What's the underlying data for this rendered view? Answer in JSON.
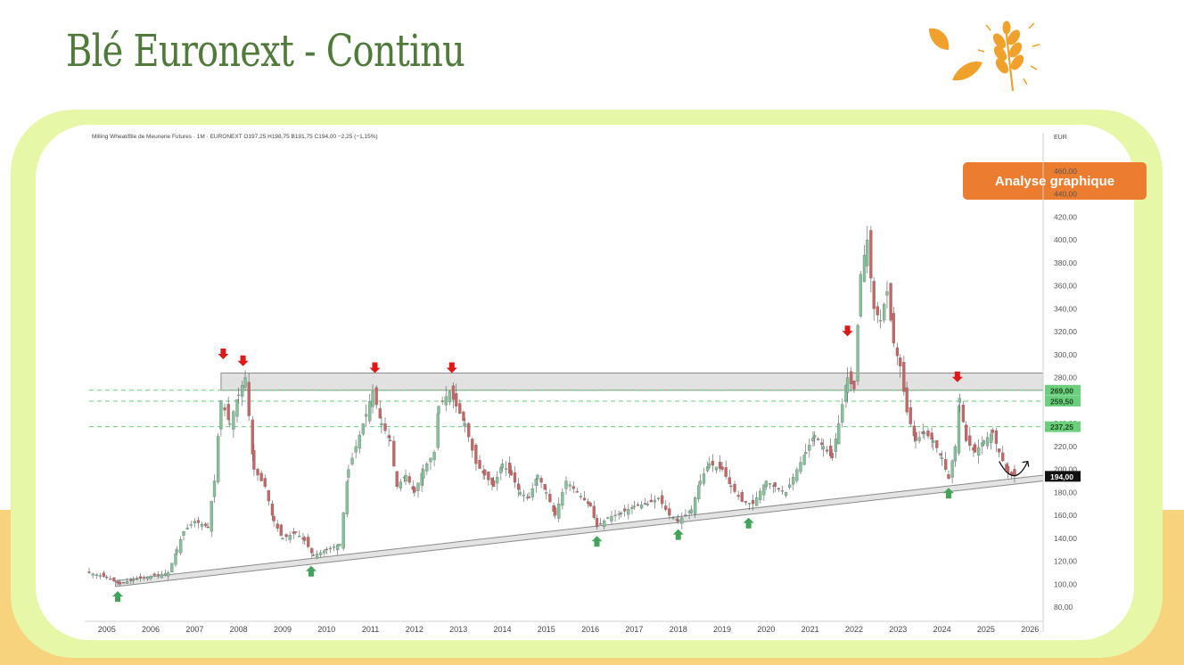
{
  "slide": {
    "title": "Blé Euronext - Continu",
    "badge": "Analyse graphique"
  },
  "colors": {
    "title": "#4f7a3a",
    "frame": "#e6f8a8",
    "band": "#f7d37e",
    "badge": "#ec7d30",
    "up_candle": "#84c29a",
    "down_candle": "#c96462",
    "sell_arrow": "#e01818",
    "buy_arrow": "#43a35a",
    "level_line": "#6ccf7e",
    "price_tag": "#111111"
  },
  "icons": [
    "leaf-icon",
    "wheat-icon"
  ],
  "chart_data": {
    "type": "candlestick",
    "header": "Milling Wheat/Ble de Meunerie Futures · 1M · EURONEXT O197,25 H198,75 B191,75 C194,00 −2,25 (−1,15%)",
    "currency": "EUR",
    "ylim": [
      70,
      470
    ],
    "y_ticks": [
      "460,00",
      "440,00",
      "420,00",
      "400,00",
      "380,00",
      "360,00",
      "340,00",
      "320,00",
      "300,00",
      "280,00",
      "260,00",
      "240,00",
      "220,00",
      "200,00",
      "180,00",
      "160,00",
      "140,00",
      "120,00",
      "100,00",
      "80,00"
    ],
    "x_ticks": [
      "2005",
      "2006",
      "2007",
      "2008",
      "2009",
      "2010",
      "2011",
      "2012",
      "2013",
      "2014",
      "2015",
      "2016",
      "2017",
      "2018",
      "2019",
      "2020",
      "2021",
      "2022",
      "2023",
      "2024",
      "2025",
      "2026"
    ],
    "xlim": [
      2004.6,
      2026.3
    ],
    "price_levels": [
      {
        "label": "269,00",
        "value": 269,
        "highlight": true
      },
      {
        "label": "259,50",
        "value": 259.5,
        "highlight": true
      },
      {
        "label": "237,25",
        "value": 237.25,
        "highlight": true
      },
      {
        "label": "194,00",
        "value": 194,
        "highlight": false
      }
    ],
    "resistance_zone": {
      "x": [
        2007.6,
        2026.3
      ],
      "y": [
        269,
        284
      ]
    },
    "support_channel": {
      "x": [
        2005.2,
        2026.3
      ],
      "y_bottom": [
        98,
        190
      ],
      "y_top": [
        103,
        195
      ]
    },
    "sell_arrows": [
      {
        "x": 2007.65,
        "y": 296
      },
      {
        "x": 2008.1,
        "y": 290
      },
      {
        "x": 2011.1,
        "y": 284
      },
      {
        "x": 2012.85,
        "y": 284
      },
      {
        "x": 2021.85,
        "y": 316
      },
      {
        "x": 2024.35,
        "y": 276
      }
    ],
    "buy_arrows": [
      {
        "x": 2005.25,
        "y": 94
      },
      {
        "x": 2009.65,
        "y": 116
      },
      {
        "x": 2016.15,
        "y": 142
      },
      {
        "x": 2018.0,
        "y": 148
      },
      {
        "x": 2019.6,
        "y": 158
      },
      {
        "x": 2024.15,
        "y": 184
      }
    ],
    "projection_arrow": {
      "from": [
        2025.3,
        207
      ],
      "via": [
        2025.65,
        193
      ],
      "to": [
        2025.95,
        207
      ]
    },
    "monthly_closes": [
      {
        "x": 2004.6,
        "c": 110
      },
      {
        "x": 2005.0,
        "c": 106
      },
      {
        "x": 2005.3,
        "c": 100
      },
      {
        "x": 2005.6,
        "c": 104
      },
      {
        "x": 2006.0,
        "c": 107
      },
      {
        "x": 2006.4,
        "c": 110
      },
      {
        "x": 2006.6,
        "c": 130
      },
      {
        "x": 2006.75,
        "c": 146
      },
      {
        "x": 2007.0,
        "c": 155
      },
      {
        "x": 2007.3,
        "c": 150
      },
      {
        "x": 2007.45,
        "c": 190
      },
      {
        "x": 2007.6,
        "c": 260
      },
      {
        "x": 2007.8,
        "c": 240
      },
      {
        "x": 2008.0,
        "c": 265
      },
      {
        "x": 2008.15,
        "c": 280
      },
      {
        "x": 2008.35,
        "c": 200
      },
      {
        "x": 2008.6,
        "c": 185
      },
      {
        "x": 2008.8,
        "c": 155
      },
      {
        "x": 2009.0,
        "c": 140
      },
      {
        "x": 2009.3,
        "c": 145
      },
      {
        "x": 2009.5,
        "c": 138
      },
      {
        "x": 2009.7,
        "c": 125
      },
      {
        "x": 2010.0,
        "c": 130
      },
      {
        "x": 2010.3,
        "c": 135
      },
      {
        "x": 2010.5,
        "c": 200
      },
      {
        "x": 2010.75,
        "c": 230
      },
      {
        "x": 2010.9,
        "c": 248
      },
      {
        "x": 2011.05,
        "c": 268
      },
      {
        "x": 2011.25,
        "c": 240
      },
      {
        "x": 2011.45,
        "c": 225
      },
      {
        "x": 2011.6,
        "c": 185
      },
      {
        "x": 2011.8,
        "c": 195
      },
      {
        "x": 2012.0,
        "c": 180
      },
      {
        "x": 2012.2,
        "c": 200
      },
      {
        "x": 2012.45,
        "c": 215
      },
      {
        "x": 2012.55,
        "c": 255
      },
      {
        "x": 2012.8,
        "c": 268
      },
      {
        "x": 2012.95,
        "c": 255
      },
      {
        "x": 2013.15,
        "c": 240
      },
      {
        "x": 2013.4,
        "c": 205
      },
      {
        "x": 2013.6,
        "c": 195
      },
      {
        "x": 2013.8,
        "c": 185
      },
      {
        "x": 2014.0,
        "c": 205
      },
      {
        "x": 2014.2,
        "c": 195
      },
      {
        "x": 2014.4,
        "c": 180
      },
      {
        "x": 2014.6,
        "c": 175
      },
      {
        "x": 2014.8,
        "c": 195
      },
      {
        "x": 2015.0,
        "c": 180
      },
      {
        "x": 2015.2,
        "c": 160
      },
      {
        "x": 2015.45,
        "c": 190
      },
      {
        "x": 2015.7,
        "c": 180
      },
      {
        "x": 2016.0,
        "c": 168
      },
      {
        "x": 2016.15,
        "c": 150
      },
      {
        "x": 2016.4,
        "c": 158
      },
      {
        "x": 2016.7,
        "c": 162
      },
      {
        "x": 2017.0,
        "c": 168
      },
      {
        "x": 2017.3,
        "c": 170
      },
      {
        "x": 2017.55,
        "c": 175
      },
      {
        "x": 2017.8,
        "c": 160
      },
      {
        "x": 2018.0,
        "c": 155
      },
      {
        "x": 2018.3,
        "c": 165
      },
      {
        "x": 2018.5,
        "c": 190
      },
      {
        "x": 2018.7,
        "c": 205
      },
      {
        "x": 2019.0,
        "c": 200
      },
      {
        "x": 2019.2,
        "c": 185
      },
      {
        "x": 2019.45,
        "c": 172
      },
      {
        "x": 2019.7,
        "c": 170
      },
      {
        "x": 2020.0,
        "c": 190
      },
      {
        "x": 2020.2,
        "c": 185
      },
      {
        "x": 2020.45,
        "c": 180
      },
      {
        "x": 2020.7,
        "c": 200
      },
      {
        "x": 2020.9,
        "c": 215
      },
      {
        "x": 2021.1,
        "c": 230
      },
      {
        "x": 2021.3,
        "c": 220
      },
      {
        "x": 2021.5,
        "c": 210
      },
      {
        "x": 2021.65,
        "c": 240
      },
      {
        "x": 2021.85,
        "c": 280
      },
      {
        "x": 2022.0,
        "c": 270
      },
      {
        "x": 2022.15,
        "c": 370
      },
      {
        "x": 2022.3,
        "c": 400
      },
      {
        "x": 2022.45,
        "c": 340
      },
      {
        "x": 2022.6,
        "c": 330
      },
      {
        "x": 2022.75,
        "c": 355
      },
      {
        "x": 2022.9,
        "c": 310
      },
      {
        "x": 2023.05,
        "c": 290
      },
      {
        "x": 2023.2,
        "c": 250
      },
      {
        "x": 2023.4,
        "c": 225
      },
      {
        "x": 2023.6,
        "c": 232
      },
      {
        "x": 2023.8,
        "c": 225
      },
      {
        "x": 2024.0,
        "c": 210
      },
      {
        "x": 2024.15,
        "c": 192
      },
      {
        "x": 2024.3,
        "c": 220
      },
      {
        "x": 2024.4,
        "c": 262
      },
      {
        "x": 2024.55,
        "c": 225
      },
      {
        "x": 2024.75,
        "c": 215
      },
      {
        "x": 2024.95,
        "c": 225
      },
      {
        "x": 2025.15,
        "c": 232
      },
      {
        "x": 2025.3,
        "c": 215
      },
      {
        "x": 2025.5,
        "c": 197
      },
      {
        "x": 2025.65,
        "c": 194
      }
    ]
  }
}
